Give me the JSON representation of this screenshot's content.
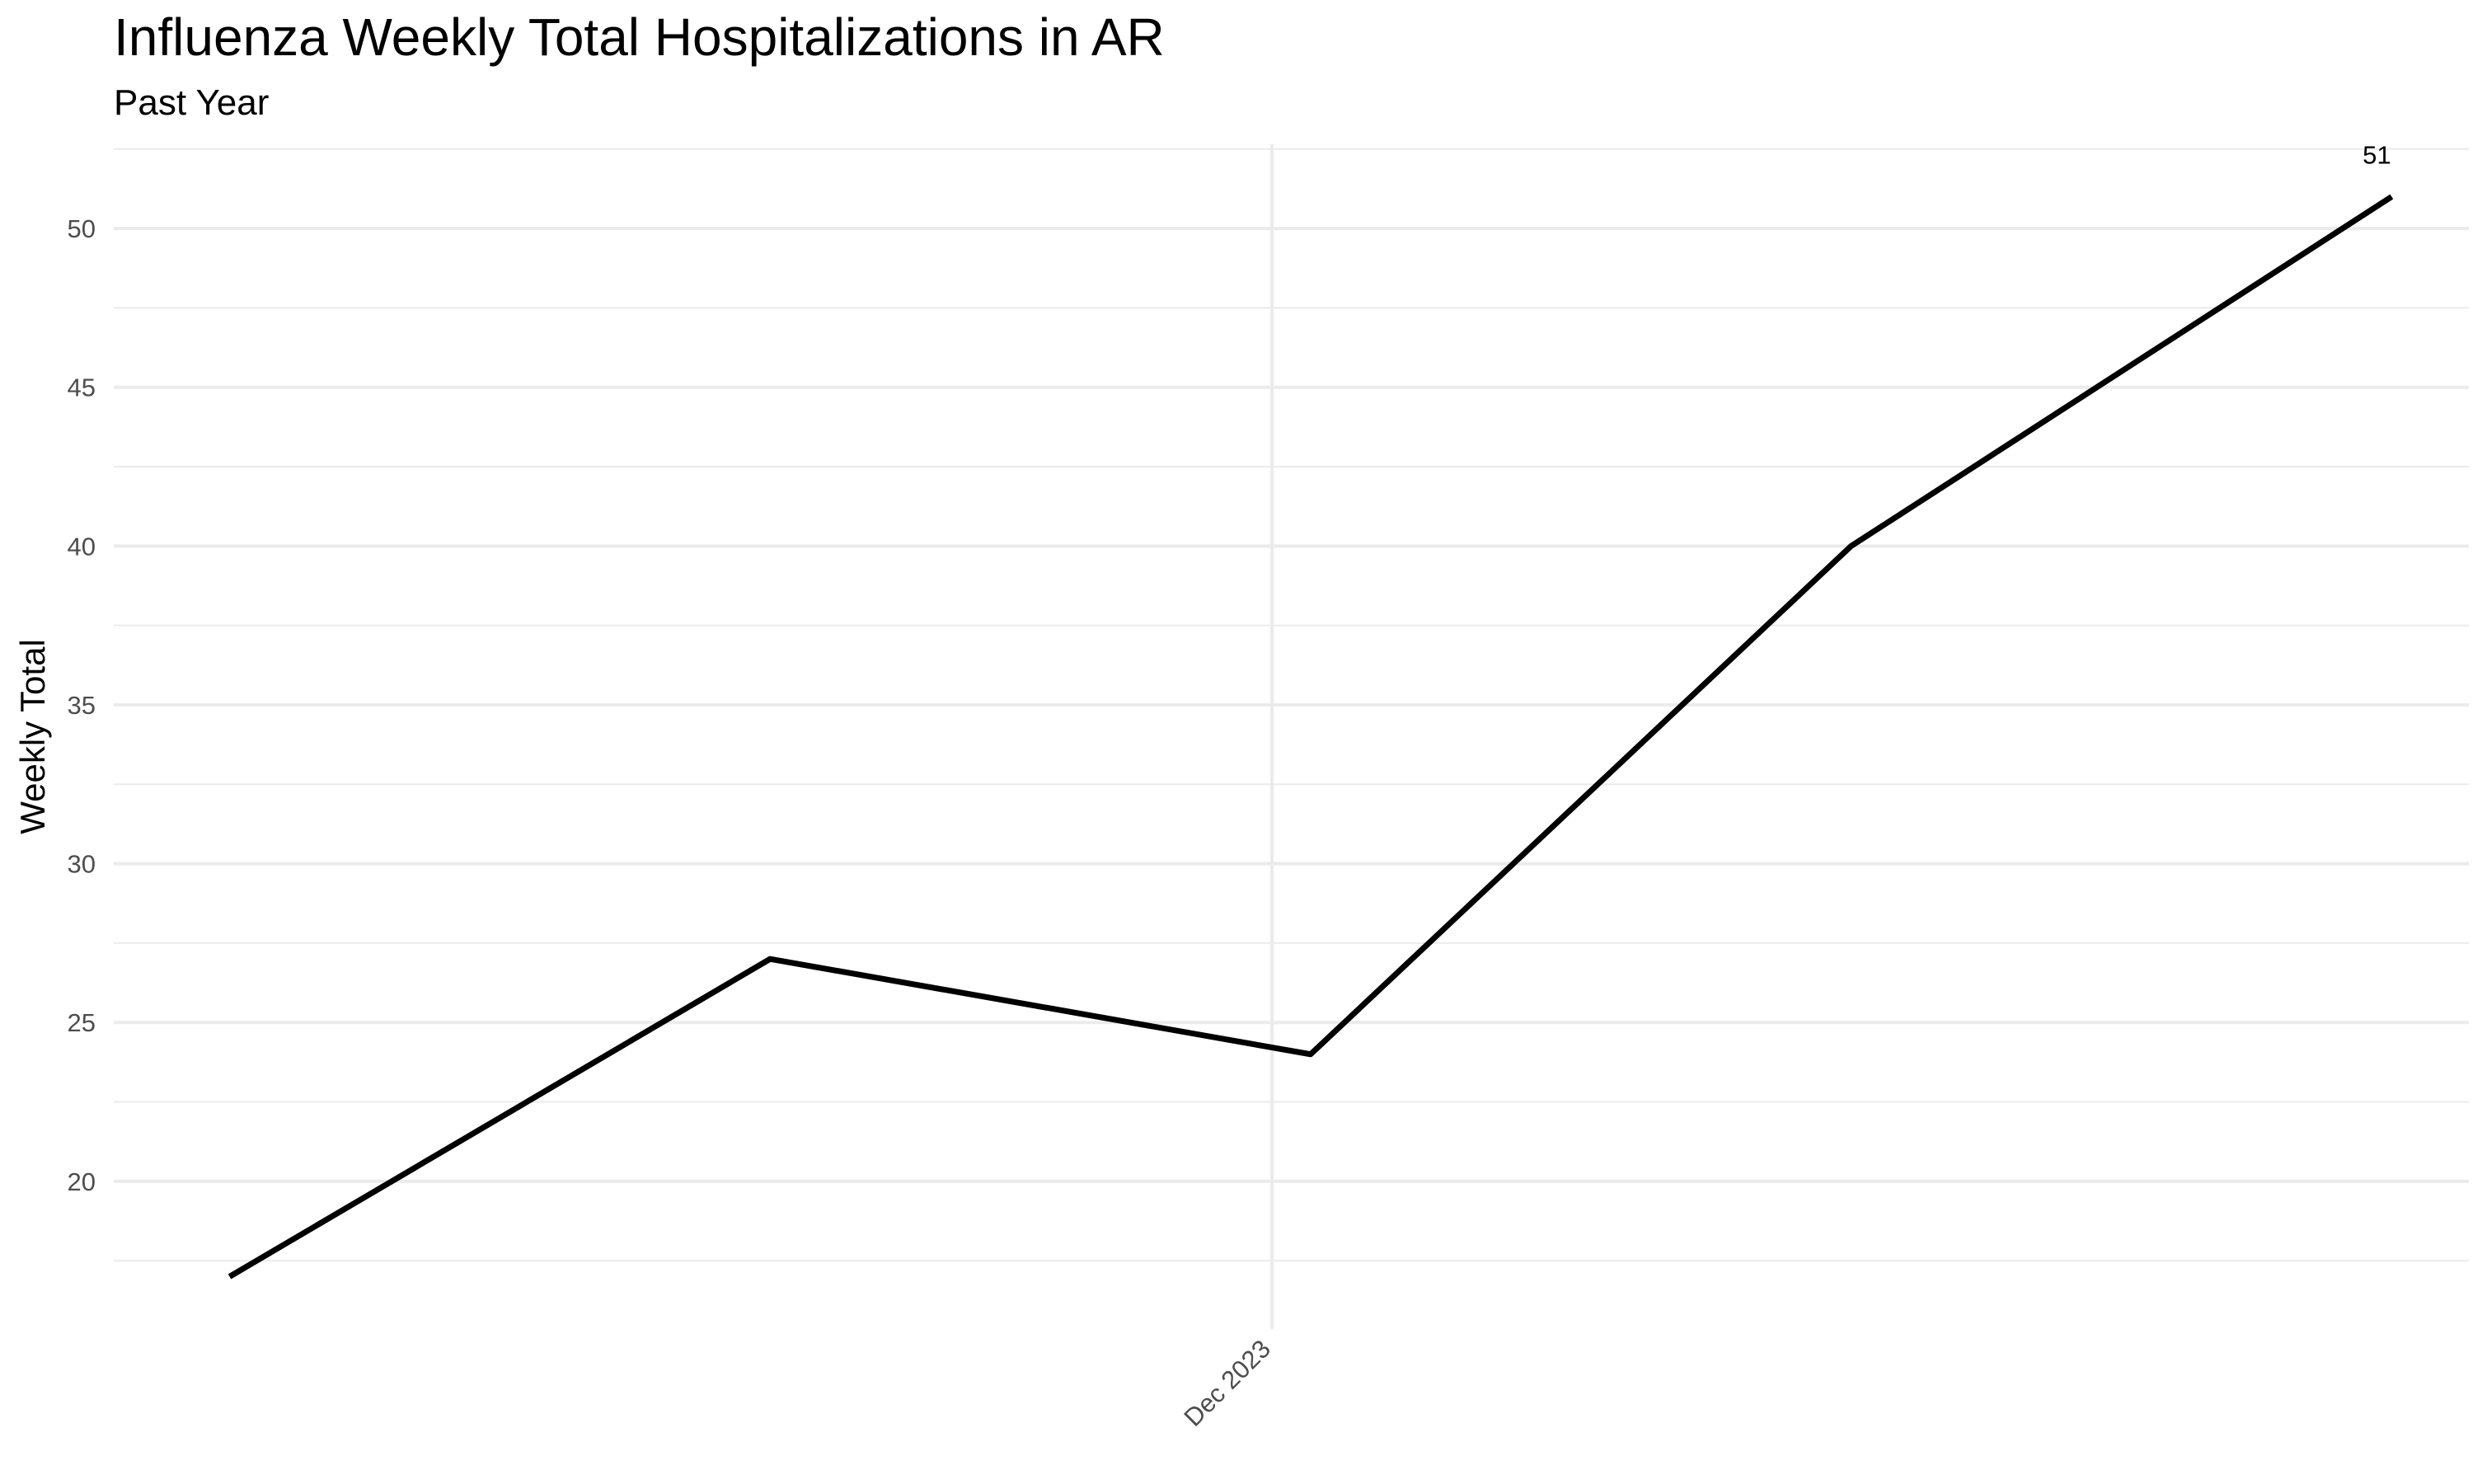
{
  "chart_data": {
    "type": "line",
    "title": "Influenza Weekly Total Hospitalizations in AR",
    "subtitle": "Past Year",
    "xlabel": "",
    "ylabel": "Weekly Total",
    "x": [
      "2023-11-04",
      "2023-11-18",
      "2023-12-02",
      "2023-12-16",
      "2023-12-30"
    ],
    "x_tick_labels": [
      {
        "x": "2023-12-01",
        "label": "Dec 2023"
      }
    ],
    "series": [
      {
        "values": [
          17,
          27,
          24,
          40,
          51
        ],
        "color": "#000000"
      }
    ],
    "y_ticks": [
      20,
      25,
      30,
      35,
      40,
      45,
      50
    ],
    "ylim": [
      15.35,
      52.65
    ],
    "xlim": [
      "2023-11-01",
      "2024-01-01"
    ],
    "grid": true,
    "annotations": [
      {
        "x": "2023-12-30",
        "y": 51,
        "text": "51"
      }
    ],
    "line_color": "#000000",
    "grid_color": "#ebebeb"
  }
}
